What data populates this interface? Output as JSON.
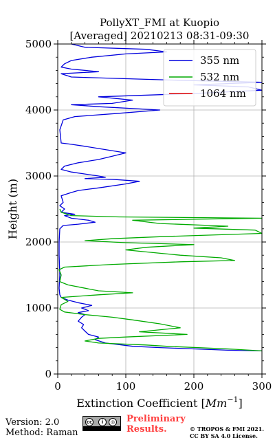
{
  "chart_data": {
    "type": "line",
    "title_line1": "PollyXT_FMI at Kuopio",
    "title_line2": "[Averaged] 20210213 08:31-09:30",
    "xlabel_prefix": "Extinction Coefficient [",
    "xlabel_unit": "Mm",
    "xlabel_exp": "−1",
    "xlabel_suffix": "]",
    "ylabel": "Height (m)",
    "xlim": [
      0,
      300
    ],
    "ylim": [
      0,
      5000
    ],
    "x_ticks": [
      0,
      100,
      200,
      300
    ],
    "y_ticks": [
      0,
      1000,
      2000,
      3000,
      4000,
      5000
    ],
    "x_tick_labels": [
      "0",
      "100",
      "200",
      "300"
    ],
    "y_tick_labels": [
      "0",
      "1000",
      "2000",
      "3000",
      "4000",
      "5000"
    ],
    "grid": true,
    "legend_position": "top-right",
    "series": [
      {
        "name": "355 nm",
        "color": "#0000dd",
        "points": [
          [
            300,
            350
          ],
          [
            250,
            360
          ],
          [
            200,
            380
          ],
          [
            150,
            400
          ],
          [
            110,
            420
          ],
          [
            70,
            470
          ],
          [
            55,
            520
          ],
          [
            60,
            560
          ],
          [
            45,
            600
          ],
          [
            40,
            650
          ],
          [
            35,
            700
          ],
          [
            38,
            750
          ],
          [
            30,
            800
          ],
          [
            35,
            860
          ],
          [
            40,
            900
          ],
          [
            30,
            930
          ],
          [
            45,
            960
          ],
          [
            35,
            1000
          ],
          [
            50,
            1040
          ],
          [
            30,
            1080
          ],
          [
            15,
            1120
          ],
          [
            5,
            1160
          ],
          [
            3,
            1200
          ],
          [
            2,
            1300
          ],
          [
            3,
            1500
          ],
          [
            2,
            1800
          ],
          [
            2,
            2000
          ],
          [
            3,
            2200
          ],
          [
            8,
            2250
          ],
          [
            30,
            2270
          ],
          [
            55,
            2300
          ],
          [
            45,
            2330
          ],
          [
            20,
            2360
          ],
          [
            10,
            2400
          ],
          [
            25,
            2420
          ],
          [
            5,
            2450
          ],
          [
            10,
            2500
          ],
          [
            3,
            2550
          ],
          [
            8,
            2600
          ],
          [
            5,
            2700
          ],
          [
            20,
            2750
          ],
          [
            30,
            2780
          ],
          [
            60,
            2820
          ],
          [
            100,
            2880
          ],
          [
            120,
            2920
          ],
          [
            80,
            2950
          ],
          [
            40,
            2960
          ],
          [
            70,
            2980
          ],
          [
            60,
            3000
          ],
          [
            40,
            3030
          ],
          [
            20,
            3060
          ],
          [
            5,
            3100
          ],
          [
            10,
            3150
          ],
          [
            30,
            3200
          ],
          [
            60,
            3250
          ],
          [
            80,
            3300
          ],
          [
            100,
            3350
          ],
          [
            70,
            3400
          ],
          [
            40,
            3450
          ],
          [
            20,
            3480
          ],
          [
            5,
            3500
          ],
          [
            3,
            3700
          ],
          [
            8,
            3850
          ],
          [
            25,
            3900
          ],
          [
            90,
            3950
          ],
          [
            150,
            4000
          ],
          [
            60,
            4050
          ],
          [
            20,
            4080
          ],
          [
            80,
            4100
          ],
          [
            110,
            4150
          ],
          [
            60,
            4200
          ],
          [
            200,
            4250
          ],
          [
            300,
            4300
          ],
          [
            280,
            4350
          ],
          [
            200,
            4380
          ],
          [
            300,
            4420
          ],
          [
            180,
            4450
          ],
          [
            80,
            4480
          ],
          [
            20,
            4500
          ],
          [
            5,
            4550
          ],
          [
            60,
            4580
          ],
          [
            20,
            4620
          ],
          [
            5,
            4650
          ],
          [
            10,
            4700
          ],
          [
            20,
            4750
          ],
          [
            50,
            4800
          ],
          [
            100,
            4850
          ],
          [
            160,
            4880
          ],
          [
            130,
            4920
          ],
          [
            40,
            4950
          ],
          [
            20,
            5000
          ]
        ]
      },
      {
        "name": "532 nm",
        "color": "#00aa00",
        "points": [
          [
            300,
            350
          ],
          [
            250,
            380
          ],
          [
            160,
            420
          ],
          [
            130,
            440
          ],
          [
            60,
            470
          ],
          [
            40,
            500
          ],
          [
            60,
            540
          ],
          [
            100,
            560
          ],
          [
            190,
            600
          ],
          [
            120,
            640
          ],
          [
            180,
            700
          ],
          [
            150,
            760
          ],
          [
            110,
            820
          ],
          [
            80,
            860
          ],
          [
            40,
            900
          ],
          [
            10,
            940
          ],
          [
            3,
            980
          ],
          [
            5,
            1050
          ],
          [
            15,
            1100
          ],
          [
            5,
            1160
          ],
          [
            60,
            1200
          ],
          [
            110,
            1230
          ],
          [
            60,
            1260
          ],
          [
            40,
            1300
          ],
          [
            15,
            1350
          ],
          [
            3,
            1400
          ],
          [
            5,
            1500
          ],
          [
            2,
            1580
          ],
          [
            10,
            1620
          ],
          [
            80,
            1660
          ],
          [
            180,
            1700
          ],
          [
            260,
            1720
          ],
          [
            240,
            1760
          ],
          [
            180,
            1800
          ],
          [
            140,
            1840
          ],
          [
            100,
            1880
          ],
          [
            130,
            1920
          ],
          [
            200,
            1960
          ],
          [
            100,
            1990
          ],
          [
            40,
            2020
          ],
          [
            80,
            2050
          ],
          [
            150,
            2080
          ],
          [
            210,
            2100
          ],
          [
            300,
            2130
          ],
          [
            290,
            2180
          ],
          [
            200,
            2210
          ],
          [
            250,
            2240
          ],
          [
            150,
            2280
          ],
          [
            110,
            2330
          ],
          [
            300,
            2360
          ],
          [
            90,
            2380
          ],
          [
            20,
            2400
          ],
          [
            5,
            2450
          ],
          [
            3,
            2500
          ]
        ]
      },
      {
        "name": "1064 nm",
        "color": "#dd0000",
        "points": []
      }
    ]
  },
  "footer": {
    "version": "Version: 2.0",
    "method": "Method: Raman",
    "license_badge": "cc by sa",
    "preliminary_line1": "Preliminary",
    "preliminary_line2": "Results.",
    "copyright_line1": "© TROPOS & FMI 2021.",
    "copyright_line2": "CC BY SA 4.0 License."
  }
}
